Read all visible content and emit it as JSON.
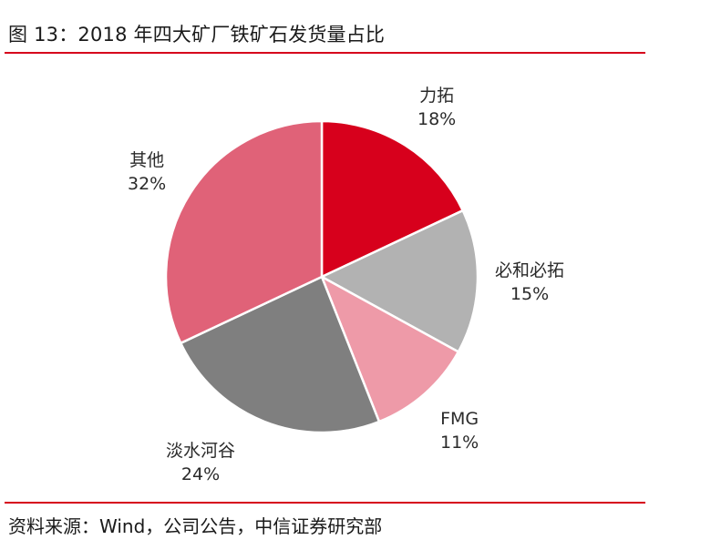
{
  "title": "图 13：2018 年四大矿厂铁矿石发货量占比",
  "source": "资料来源：Wind，公司公告，中信证券研究部",
  "colors": {
    "accent": "#d6001c"
  },
  "chart_data": {
    "type": "pie",
    "title": "图 13：2018 年四大矿厂铁矿石发货量占比",
    "categories": [
      "力拓",
      "必和必拓",
      "FMG",
      "淡水河谷",
      "其他"
    ],
    "values": [
      18,
      15,
      11,
      24,
      32
    ],
    "unit": "%",
    "colors": [
      "#d7001c",
      "#b2b2b2",
      "#ee9aa8",
      "#7f7f7f",
      "#e06278"
    ],
    "labels": [
      {
        "name": "力拓",
        "pct": "18%"
      },
      {
        "name": "必和必拓",
        "pct": "15%"
      },
      {
        "name": "FMG",
        "pct": "11%"
      },
      {
        "name": "淡水河谷",
        "pct": "24%"
      },
      {
        "name": "其他",
        "pct": "32%"
      }
    ],
    "start_angle_deg": 0,
    "direction": "clockwise",
    "legend": "none (data labels outside slices)"
  }
}
